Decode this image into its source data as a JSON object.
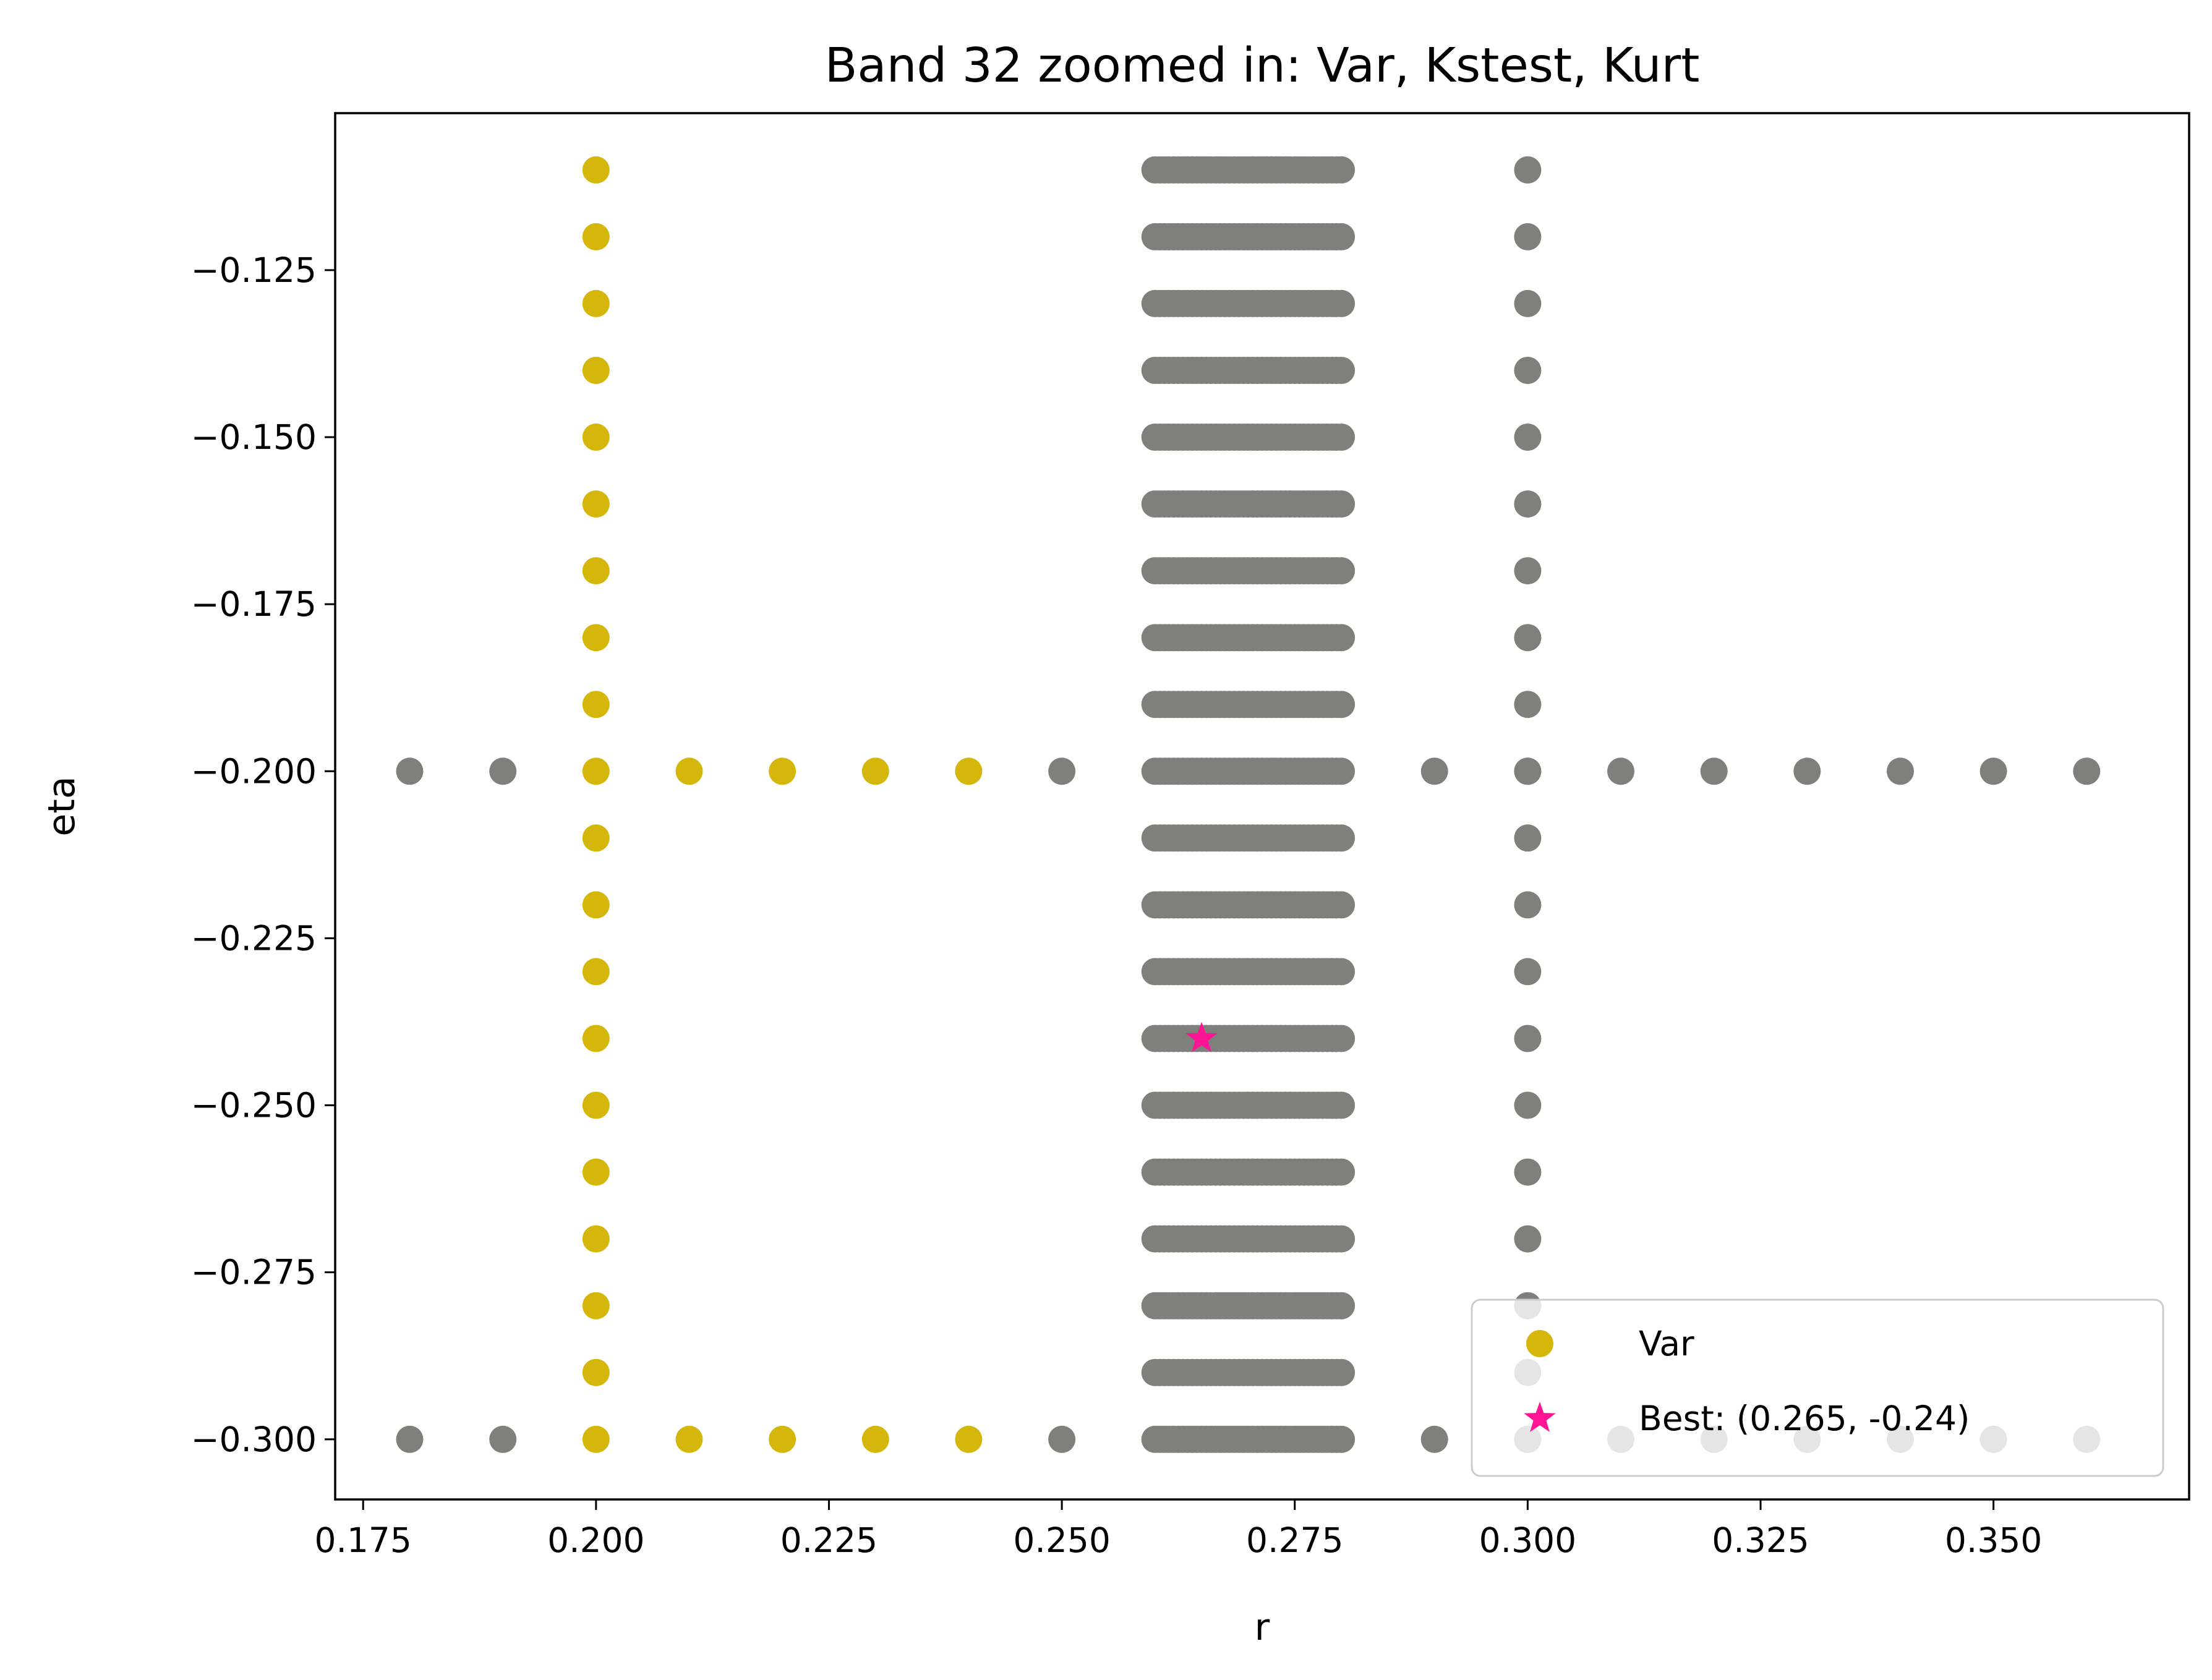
{
  "chart_data": {
    "type": "scatter",
    "title": "Band 32 zoomed in: Var, Kstest, Kurt",
    "xlabel": "r",
    "ylabel": "eta",
    "xlim": [
      0.172,
      0.371
    ],
    "ylim": [
      -0.309,
      -0.1015
    ],
    "xticks": [
      0.175,
      0.2,
      0.225,
      0.25,
      0.275,
      0.3,
      0.325,
      0.35
    ],
    "xtick_labels": [
      "0.175",
      "0.200",
      "0.225",
      "0.250",
      "0.275",
      "0.300",
      "0.325",
      "0.350"
    ],
    "yticks": [
      -0.125,
      -0.15,
      -0.175,
      -0.2,
      -0.225,
      -0.25,
      -0.275,
      -0.3
    ],
    "ytick_labels": [
      "−0.125",
      "−0.150",
      "−0.175",
      "−0.200",
      "−0.225",
      "−0.250",
      "−0.275",
      "−0.300"
    ],
    "grid": false,
    "legend_position": "lower-right",
    "colors": {
      "grid_points": "#7f7f7c",
      "var": "#d4b70a",
      "best": "#ff1493"
    },
    "grid_points": {
      "dense_r_range": [
        0.26,
        0.28
      ],
      "dense_r_step": 0.0005,
      "eta_range": [
        -0.3,
        -0.11
      ],
      "eta_step": 0.01,
      "column_r": [
        0.3
      ],
      "row_eta": [
        -0.2,
        -0.3
      ],
      "row_r": [
        0.18,
        0.19,
        0.25,
        0.29,
        0.3,
        0.31,
        0.32,
        0.33,
        0.34,
        0.35,
        0.36
      ]
    },
    "series": [
      {
        "name": "Var",
        "marker": "circle",
        "color": "#d4b70a",
        "points": [
          [
            0.2,
            -0.11
          ],
          [
            0.2,
            -0.12
          ],
          [
            0.2,
            -0.13
          ],
          [
            0.2,
            -0.14
          ],
          [
            0.2,
            -0.15
          ],
          [
            0.2,
            -0.16
          ],
          [
            0.2,
            -0.17
          ],
          [
            0.2,
            -0.18
          ],
          [
            0.2,
            -0.19
          ],
          [
            0.2,
            -0.2
          ],
          [
            0.2,
            -0.21
          ],
          [
            0.2,
            -0.22
          ],
          [
            0.2,
            -0.23
          ],
          [
            0.2,
            -0.24
          ],
          [
            0.2,
            -0.25
          ],
          [
            0.2,
            -0.26
          ],
          [
            0.2,
            -0.27
          ],
          [
            0.2,
            -0.28
          ],
          [
            0.2,
            -0.29
          ],
          [
            0.2,
            -0.3
          ],
          [
            0.21,
            -0.2
          ],
          [
            0.22,
            -0.2
          ],
          [
            0.23,
            -0.2
          ],
          [
            0.24,
            -0.2
          ],
          [
            0.21,
            -0.3
          ],
          [
            0.22,
            -0.3
          ],
          [
            0.23,
            -0.3
          ],
          [
            0.24,
            -0.3
          ]
        ]
      },
      {
        "name": "Best: (0.265, -0.24)",
        "marker": "star",
        "color": "#ff1493",
        "points": [
          [
            0.265,
            -0.24
          ]
        ]
      }
    ]
  }
}
